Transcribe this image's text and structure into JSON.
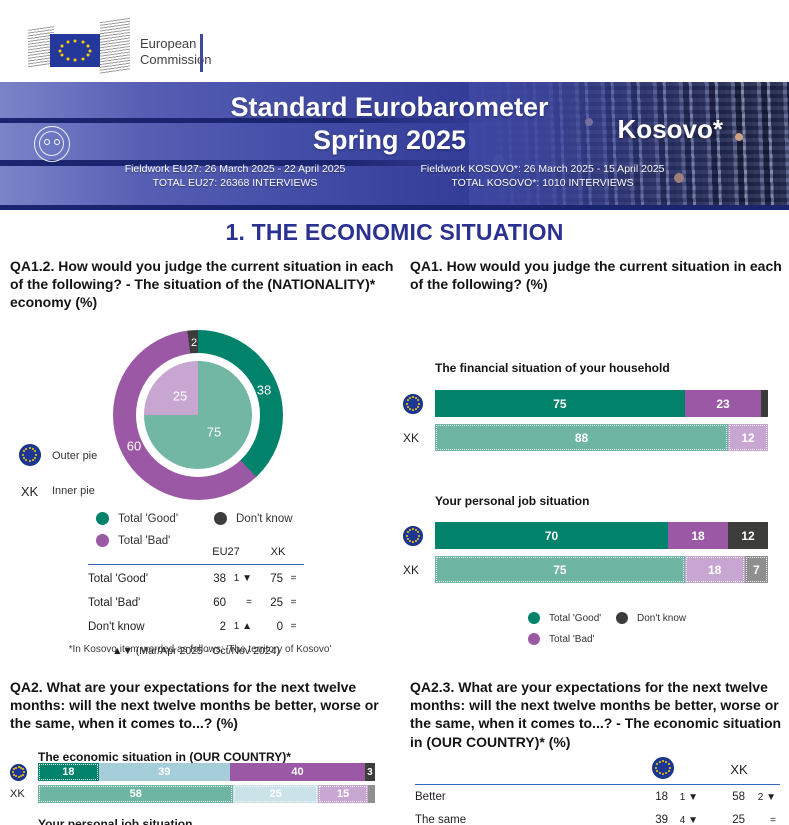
{
  "colors": {
    "good_eu": "#00826B",
    "bad_eu": "#9B59A5",
    "dk_eu": "#3C3C3B",
    "good_xk": "#6FB5A3",
    "bad_xk": "#C7A7D2",
    "dk_xk": "#8F8F8F",
    "same_eu": "#A6CEDA",
    "same_xk": "#CBE2E8",
    "headline_blue": "#2B3191",
    "table_rule_blue": "#2E6BBF",
    "banner_blue": "#3E47A2",
    "eu_flag_blue": "#1C3894",
    "star_yellow": "#FFCC00"
  },
  "labels": {
    "eu27": "EU27",
    "xk": "XK"
  },
  "header": {
    "logo": {
      "line1": "European",
      "line2": "Commission"
    },
    "banner": {
      "title_line1": "Standard Eurobarometer",
      "title_line2": "Spring 2025",
      "region": "Kosovo*",
      "fieldwork_eu_line1": "Fieldwork EU27: 26 March 2025 - 22 April 2025",
      "fieldwork_eu_line2": "TOTAL EU27: 26368 INTERVIEWS",
      "fieldwork_xk_line1": "Fieldwork KOSOVO*: 26 March 2025 - 15 April 2025",
      "fieldwork_xk_line2": "TOTAL KOSOVO*: 1010 INTERVIEWS"
    }
  },
  "section_title": "1. THE ECONOMIC SITUATION",
  "legend": {
    "good": "Total 'Good'",
    "bad": "Total 'Bad'",
    "dk": "Don't know"
  },
  "qa12": {
    "question": "QA1.2. How would you judge the current situation in each of the following? - The situation of the (NATIONALITY)* economy (%)",
    "pie_side": {
      "outer": "Outer pie",
      "inner": "Inner pie"
    },
    "donut": {
      "outer": {
        "good": "38",
        "bad": "60",
        "dk": "2"
      },
      "inner": {
        "good": "75",
        "bad": "25"
      }
    },
    "table": {
      "rows": [
        {
          "label": "Total 'Good'",
          "eu": "38",
          "eu_change": "1 ▼",
          "xk": "75",
          "xk_change": "="
        },
        {
          "label": "Total 'Bad'",
          "eu": "60",
          "eu_change": "=",
          "xk": "25",
          "xk_change": "="
        },
        {
          "label": "Don't know",
          "eu": "2",
          "eu_change": "1 ▲",
          "xk": "0",
          "xk_change": "="
        }
      ],
      "note": "▲▼ (Mar/Apr 2025 - Oct/Nov 2024)"
    },
    "footnote": "*In Kosovo item worded as follows: 'The territory of Kosovo'"
  },
  "qa1": {
    "question": "QA1. How would you judge the current situation in each of the following? (%)",
    "household": {
      "title": "The financial situation of your household",
      "eu_good": "75",
      "eu_bad": "23",
      "xk_good": "88",
      "xk_bad": "12"
    },
    "job": {
      "title": "Your personal job situation",
      "eu_good": "70",
      "eu_bad": "18",
      "eu_dk": "12",
      "xk_good": "75",
      "xk_bad": "18",
      "xk_dk": "7"
    }
  },
  "qa2": {
    "question": "QA2. What are your expectations for the next twelve months: will the next twelve months be better, worse or the same, when it comes to...? (%)",
    "economy": {
      "title": "The economic situation in (OUR COUNTRY)*",
      "eu_better": "18",
      "eu_same": "39",
      "eu_worse": "40",
      "eu_dk": "3",
      "xk_better": "58",
      "xk_same": "25",
      "xk_worse": "15"
    },
    "next_title_partial": "Your personal job situation"
  },
  "qa23": {
    "question": "QA2.3. What are your expectations for the next twelve months: will the next twelve months be better, worse or the same, when it comes to...? - The economic situation in (OUR COUNTRY)* (%)",
    "table": {
      "rows": [
        {
          "label": "Better",
          "eu": "18",
          "eu_change": "1 ▼",
          "xk": "58",
          "xk_change": "2 ▼"
        },
        {
          "label": "The same",
          "eu": "39",
          "eu_change": "4 ▼",
          "xk": "25",
          "xk_change": "="
        }
      ]
    }
  },
  "chart_data": [
    {
      "type": "pie",
      "title": "QA1.2 The situation of the (NATIONALITY)* economy (%)",
      "series": [
        {
          "name": "EU27 (outer pie)",
          "labels": [
            "Total 'Good'",
            "Total 'Bad'",
            "Don't know"
          ],
          "values": [
            38,
            60,
            2
          ]
        },
        {
          "name": "XK (inner pie)",
          "labels": [
            "Total 'Good'",
            "Total 'Bad'"
          ],
          "values": [
            75,
            25
          ]
        }
      ],
      "legend_position": "bottom"
    },
    {
      "type": "bar",
      "title": "The financial situation of your household",
      "categories": [
        "Total 'Good'",
        "Total 'Bad'",
        "Don't know"
      ],
      "series": [
        {
          "name": "EU27",
          "values": [
            75,
            23,
            2
          ]
        },
        {
          "name": "XK",
          "values": [
            88,
            12,
            0
          ]
        }
      ],
      "orientation": "horizontal-stacked",
      "xlim": [
        0,
        100
      ]
    },
    {
      "type": "bar",
      "title": "Your personal job situation",
      "categories": [
        "Total 'Good'",
        "Total 'Bad'",
        "Don't know"
      ],
      "series": [
        {
          "name": "EU27",
          "values": [
            70,
            18,
            12
          ]
        },
        {
          "name": "XK",
          "values": [
            75,
            18,
            7
          ]
        }
      ],
      "orientation": "horizontal-stacked",
      "xlim": [
        0,
        100
      ]
    },
    {
      "type": "bar",
      "title": "The economic situation in (OUR COUNTRY)*",
      "categories": [
        "Better",
        "The same",
        "Worse",
        "Don't know"
      ],
      "series": [
        {
          "name": "EU27",
          "values": [
            18,
            39,
            40,
            3
          ]
        },
        {
          "name": "XK",
          "values": [
            58,
            25,
            15,
            2
          ]
        }
      ],
      "orientation": "horizontal-stacked",
      "xlim": [
        0,
        100
      ]
    },
    {
      "type": "table",
      "title": "QA2.3 The economic situation in (OUR COUNTRY)* (%)",
      "columns": [
        "",
        "EU27",
        "EU27 change",
        "XK",
        "XK change"
      ],
      "rows": [
        [
          "Better",
          18,
          "-1",
          58,
          "-2"
        ],
        [
          "The same",
          39,
          "-4",
          25,
          "="
        ]
      ]
    }
  ]
}
